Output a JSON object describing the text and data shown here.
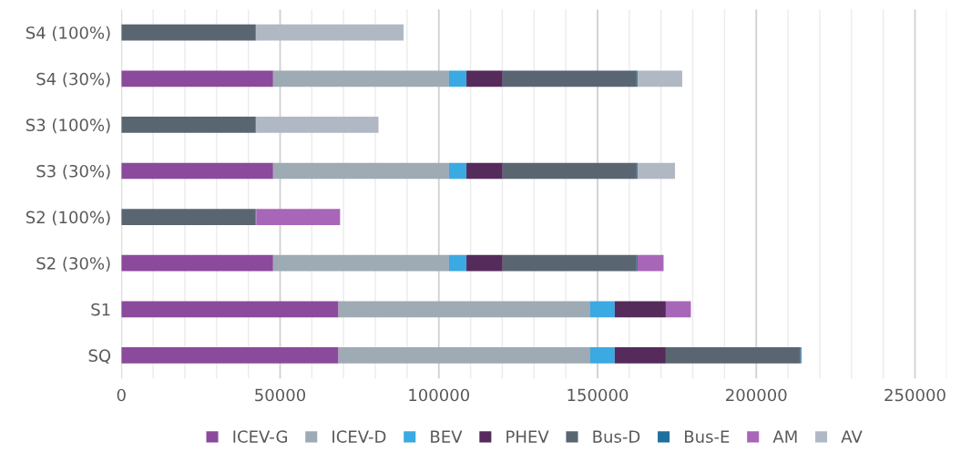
{
  "chart_data": {
    "type": "bar",
    "orientation": "horizontal",
    "stacked": true,
    "categories": [
      "S4 (100%)",
      "S4 (30%)",
      "S3 (100%)",
      "S3 (30%)",
      "S2 (100%)",
      "S2 (30%)",
      "S1",
      "SQ"
    ],
    "series": [
      {
        "name": "ICEV-G",
        "color": "#8b4a9b",
        "values": [
          null,
          47800,
          null,
          47800,
          null,
          47800,
          68400,
          68400
        ]
      },
      {
        "name": "ICEV-D",
        "color": "#9eaab4",
        "values": [
          null,
          55400,
          null,
          55400,
          null,
          55400,
          79300,
          79300
        ]
      },
      {
        "name": "BEV",
        "color": "#3ba9e2",
        "values": [
          null,
          5500,
          null,
          5500,
          null,
          5500,
          7700,
          7700
        ]
      },
      {
        "name": "PHEV",
        "color": "#552b5c",
        "values": [
          null,
          11400,
          null,
          11400,
          null,
          11400,
          16100,
          16100
        ]
      },
      {
        "name": "Bus-D",
        "color": "#596672",
        "values": [
          42200,
          42200,
          42200,
          42200,
          42200,
          42200,
          null,
          42400
        ]
      },
      {
        "name": "Bus-E",
        "color": "#1f6f9e",
        "values": [
          300,
          300,
          300,
          300,
          300,
          300,
          null,
          300
        ]
      },
      {
        "name": "AM",
        "color": "#a866b8",
        "values": [
          null,
          null,
          null,
          null,
          26400,
          8200,
          7900,
          null
        ]
      },
      {
        "name": "AV",
        "color": "#b0b9c3",
        "values": [
          46400,
          14100,
          38500,
          11800,
          null,
          null,
          null,
          null
        ]
      }
    ],
    "xlim": [
      0,
      260000
    ],
    "xticks": [
      0,
      {
        "value": 10000,
        "label": null
      },
      {
        "value": 20000,
        "label": null
      },
      {
        "value": 30000,
        "label": null
      },
      {
        "value": 40000,
        "label": null
      },
      50000,
      {
        "value": 60000,
        "label": null
      },
      {
        "value": 70000,
        "label": null
      },
      {
        "value": 80000,
        "label": null
      },
      {
        "value": 90000,
        "label": null
      },
      100000,
      {
        "value": 110000,
        "label": null
      },
      {
        "value": 120000,
        "label": null
      },
      {
        "value": 130000,
        "label": null
      },
      {
        "value": 140000,
        "label": null
      },
      150000,
      {
        "value": 160000,
        "label": null
      },
      {
        "value": 170000,
        "label": null
      },
      {
        "value": 180000,
        "label": null
      },
      {
        "value": 190000,
        "label": null
      },
      200000,
      {
        "value": 210000,
        "label": null
      },
      {
        "value": 220000,
        "label": null
      },
      {
        "value": 230000,
        "label": null
      },
      {
        "value": 240000,
        "label": null
      },
      250000,
      {
        "value": 260000,
        "label": null
      }
    ],
    "grid": "x",
    "legend": "bottom"
  }
}
